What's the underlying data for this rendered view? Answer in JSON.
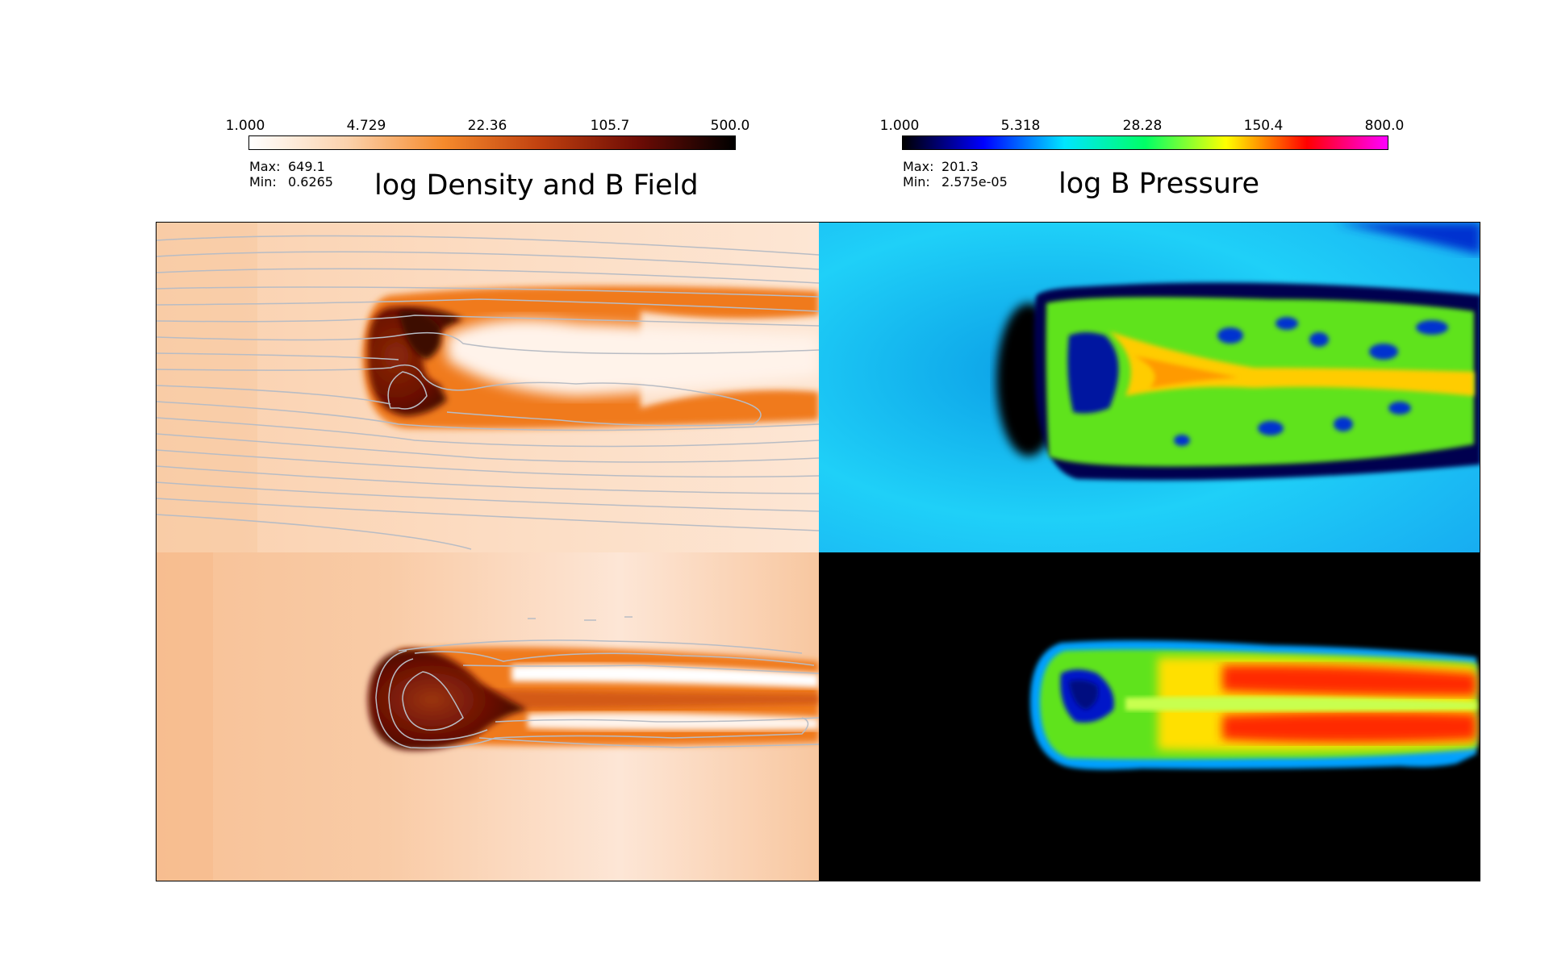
{
  "left_colorbar": {
    "ticks": [
      "1.000",
      "4.729",
      "22.36",
      "105.7",
      "500.0"
    ],
    "max_label": "Max:",
    "max_value": "649.1",
    "min_label": "Min:",
    "min_value": "0.6265",
    "colors": [
      "#ffffff",
      "#fbd2ad",
      "#f58a2c",
      "#c0400f",
      "#6e0c05",
      "#000000"
    ]
  },
  "right_colorbar": {
    "ticks": [
      "1.000",
      "5.318",
      "28.28",
      "150.4",
      "800.0"
    ],
    "max_label": "Max:",
    "max_value": "201.3",
    "min_label": "Min:",
    "min_value": "2.575e-05",
    "colors": [
      "#000000",
      "#0000ff",
      "#00e5ff",
      "#00ff66",
      "#ffff00",
      "#ff0000",
      "#ff00ff"
    ]
  },
  "titles": {
    "left": "log Density and B Field",
    "right": "log B Pressure"
  },
  "colors": {
    "density_background": "#fbd4b4",
    "density_core": "#6a0f03",
    "density_shell": "#f07a1c",
    "bpressure_background_top": "#1fd0f8",
    "bpressure_background_bottom": "#000000",
    "bpressure_green": "#5ee31f",
    "bpressure_red": "#ff2a00",
    "field_line": "#b8bcc4"
  }
}
